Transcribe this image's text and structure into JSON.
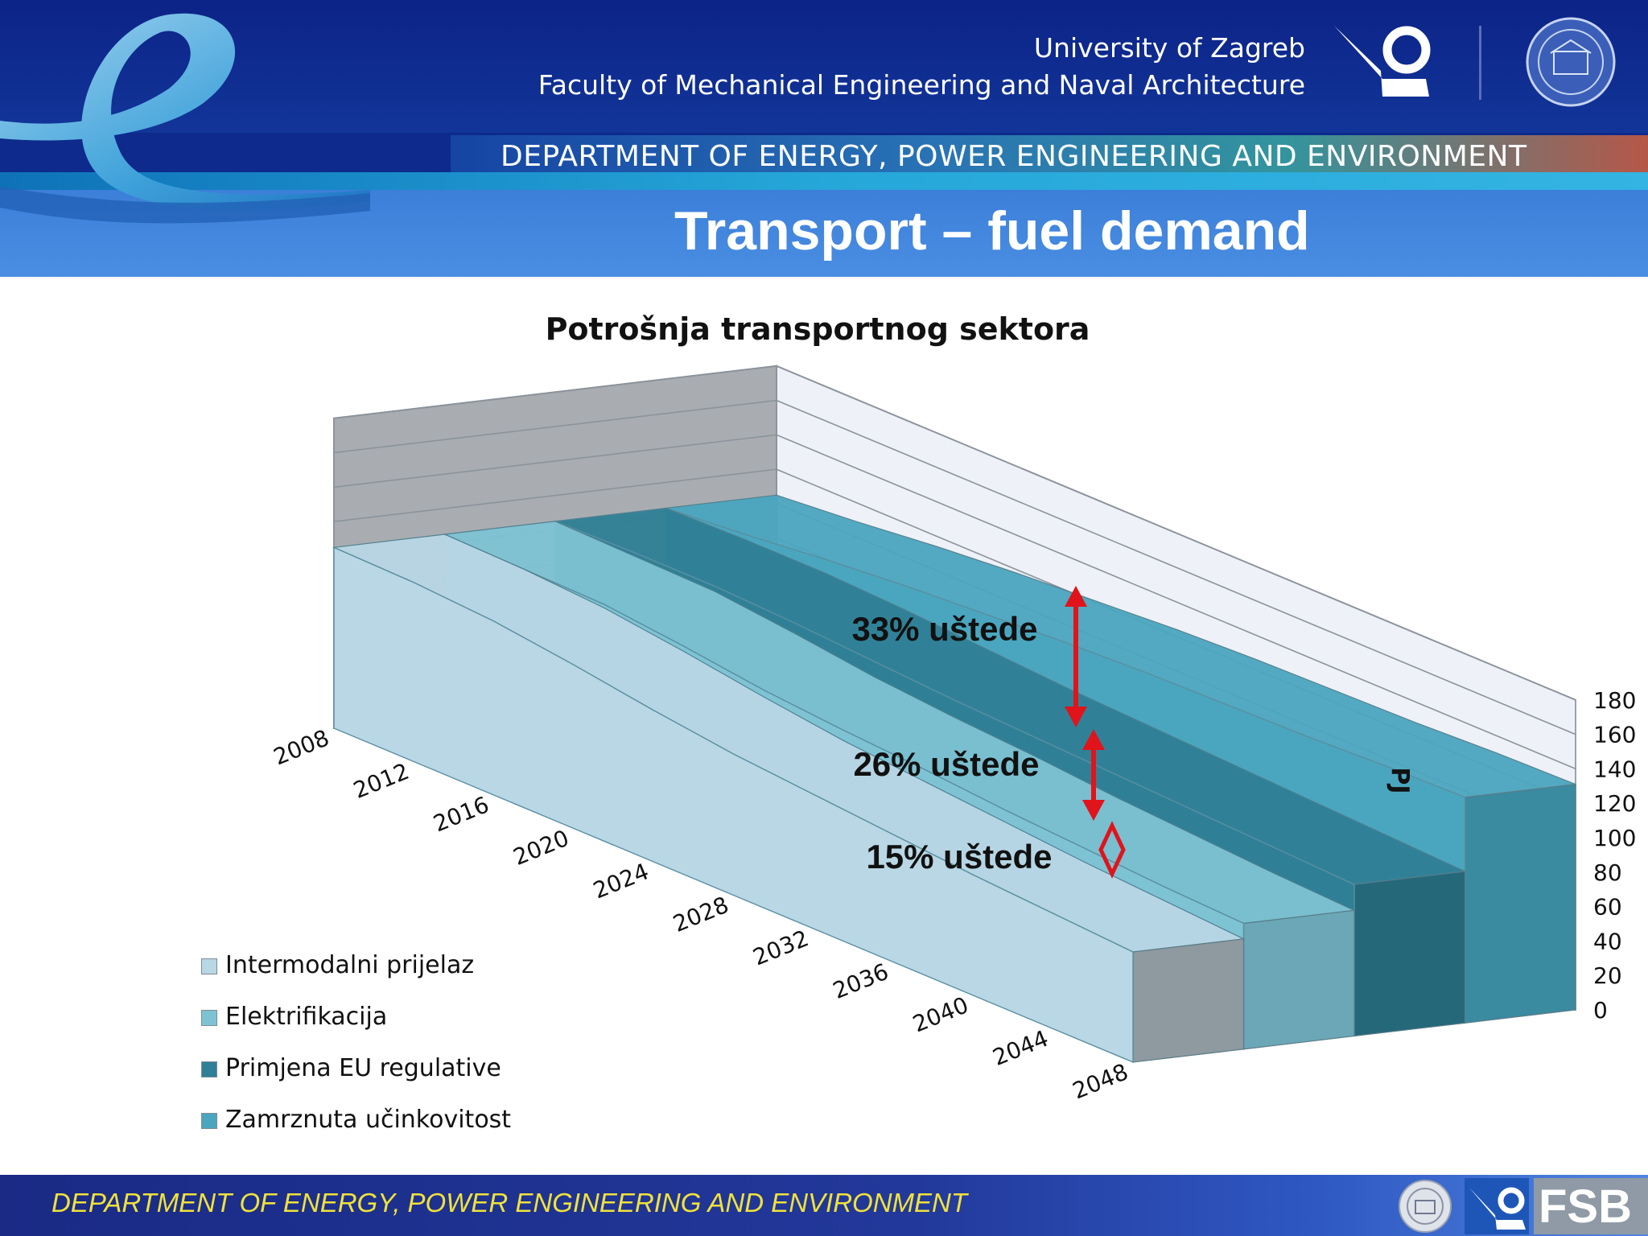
{
  "header": {
    "university": "University of Zagreb",
    "faculty": "Faculty of Mechanical Engineering and Naval Architecture",
    "department": "DEPARTMENT OF ENERGY, POWER ENGINEERING AND ENVIRONMENT",
    "slide_title": "Transport – fuel demand"
  },
  "footer": {
    "department": "DEPARTMENT OF ENERGY, POWER ENGINEERING AND ENVIRONMENT",
    "logo_text": "FSB"
  },
  "colors": {
    "intermodal": "#b9d7e5",
    "electrification": "#7ec3d4",
    "eu_regulation": "#2f8096",
    "frozen": "#4aa6bf",
    "arrow": "#e0141a",
    "navy": "#0d2a8c",
    "footer_text": "#f0e23a"
  },
  "icons": [
    "fsb-logo-icon",
    "university-seal-icon"
  ],
  "chart_data": {
    "type": "area",
    "style": "3d-stacked-ribbon",
    "title": "Potrošnja transportnog sektora",
    "ylabel": "PJ",
    "xlabel": "",
    "ylim": [
      0,
      180
    ],
    "y_ticks": [
      0,
      20,
      40,
      60,
      80,
      100,
      120,
      140,
      160,
      180
    ],
    "x": [
      2008,
      2012,
      2016,
      2020,
      2024,
      2028,
      2032,
      2036,
      2040,
      2044,
      2048
    ],
    "series": [
      {
        "name": "Intermodalni prijelaz",
        "values": [
          105,
          104,
          101,
          95,
          88,
          82,
          78,
          74,
          70,
          67,
          64
        ]
      },
      {
        "name": "Elektrifikacija",
        "values": [
          105,
          104,
          103,
          98,
          92,
          88,
          85,
          81,
          78,
          75,
          73
        ]
      },
      {
        "name": "Primjena EU regulative",
        "values": [
          105,
          106,
          106,
          104,
          101,
          98,
          96,
          94,
          92,
          90,
          88
        ]
      },
      {
        "name": "Zamrznuta učinkovitost",
        "values": [
          105,
          109,
          114,
          118,
          121,
          124,
          126,
          127,
          128,
          130,
          131
        ]
      }
    ],
    "annotations": [
      {
        "text": "33% uštede"
      },
      {
        "text": "26% uštede"
      },
      {
        "text": "15% uštede"
      }
    ],
    "legend_position": "bottom-left",
    "grid": true
  }
}
